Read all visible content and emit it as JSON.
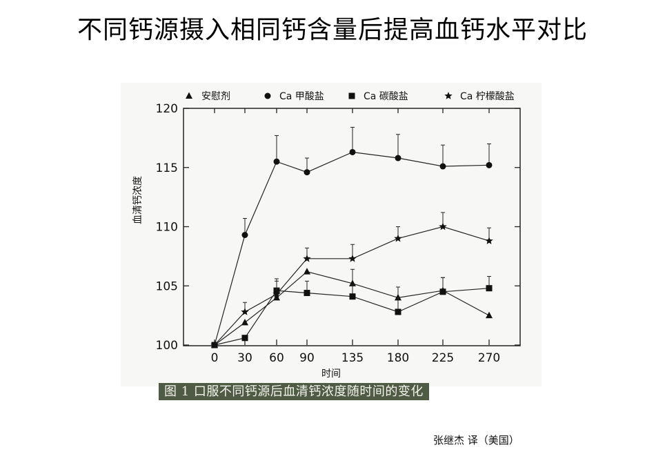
{
  "title": "不同钙源摄入相同钙含量后提高血钙水平对比",
  "caption": "图 1   口服不同钙源后血清钙浓度随时间的变化",
  "credit": "张继杰  译（美国）",
  "chart_data": {
    "type": "line",
    "xlabel": "时间",
    "ylabel": "血清钙浓度",
    "x": [
      0,
      30,
      60,
      90,
      135,
      180,
      225,
      270
    ],
    "ylim": [
      100,
      120
    ],
    "yticks": [
      100,
      105,
      110,
      115,
      120
    ],
    "grid": false,
    "legend_position": "top",
    "series": [
      {
        "name": "安慰剂",
        "marker": "triangle",
        "values": [
          100.0,
          101.9,
          104.0,
          106.2,
          105.2,
          104.0,
          104.6,
          102.5
        ],
        "errors": [
          0,
          0,
          0,
          0,
          1.2,
          0.9,
          1.1,
          0
        ]
      },
      {
        "name": "Ca 甲酸盐",
        "marker": "circle",
        "values": [
          100.0,
          109.3,
          115.5,
          114.6,
          116.3,
          115.8,
          115.1,
          115.2
        ],
        "errors": [
          0,
          1.4,
          2.2,
          1.2,
          2.1,
          2.0,
          1.8,
          1.8
        ]
      },
      {
        "name": "Ca 碳酸盐",
        "marker": "square",
        "values": [
          100.0,
          100.6,
          104.6,
          104.4,
          104.1,
          102.8,
          104.5,
          104.8
        ],
        "errors": [
          0,
          0,
          1.0,
          1.0,
          1.0,
          1.2,
          1.2,
          1.0
        ]
      },
      {
        "name": "Ca 柠檬酸盐",
        "marker": "star",
        "values": [
          100.0,
          102.8,
          104.3,
          107.3,
          107.3,
          109.0,
          110.0,
          108.8
        ],
        "errors": [
          0,
          0.8,
          1.1,
          0.9,
          1.2,
          1.0,
          1.2,
          1.1
        ]
      }
    ]
  }
}
